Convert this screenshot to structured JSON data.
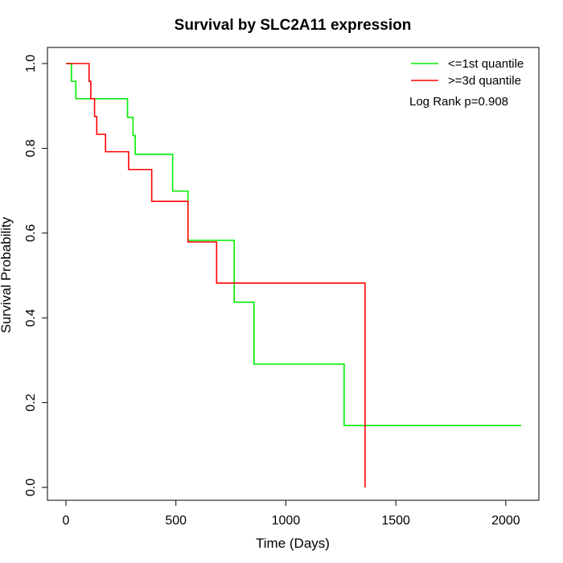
{
  "chart_data": {
    "type": "line",
    "title": "Survival by SLC2A11 expression",
    "xlabel": "Time (Days)",
    "ylabel": "Survival Probability",
    "xlim": [
      0,
      2070
    ],
    "ylim": [
      0,
      1
    ],
    "x_ticks": [
      0,
      500,
      1000,
      1500,
      2000
    ],
    "y_ticks": [
      0.0,
      0.2,
      0.4,
      0.6,
      0.8,
      1.0
    ],
    "x_tick_labels": [
      "0",
      "500",
      "1000",
      "1500",
      "2000"
    ],
    "y_tick_labels": [
      "0.0",
      "0.2",
      "0.4",
      "0.6",
      "0.8",
      "1.0"
    ],
    "grid": false,
    "legend_position": "top-right",
    "annotation": "Log Rank p=0.908",
    "series": [
      {
        "name": "<=1st quantile",
        "color": "#00ee00",
        "step": true,
        "x": [
          0,
          25,
          45,
          280,
          305,
          315,
          485,
          555,
          765,
          855,
          1265,
          2070
        ],
        "y": [
          1.0,
          0.958,
          0.917,
          0.873,
          0.83,
          0.786,
          0.699,
          0.583,
          0.437,
          0.291,
          0.146,
          0.146
        ]
      },
      {
        "name": ">=3d quantile",
        "color": "#ff0000",
        "step": true,
        "x": [
          0,
          105,
          113,
          130,
          140,
          180,
          285,
          390,
          555,
          685,
          1360,
          1360
        ],
        "y": [
          1.0,
          0.958,
          0.917,
          0.875,
          0.833,
          0.792,
          0.75,
          0.675,
          0.579,
          0.482,
          0.482,
          0.0
        ]
      }
    ]
  }
}
